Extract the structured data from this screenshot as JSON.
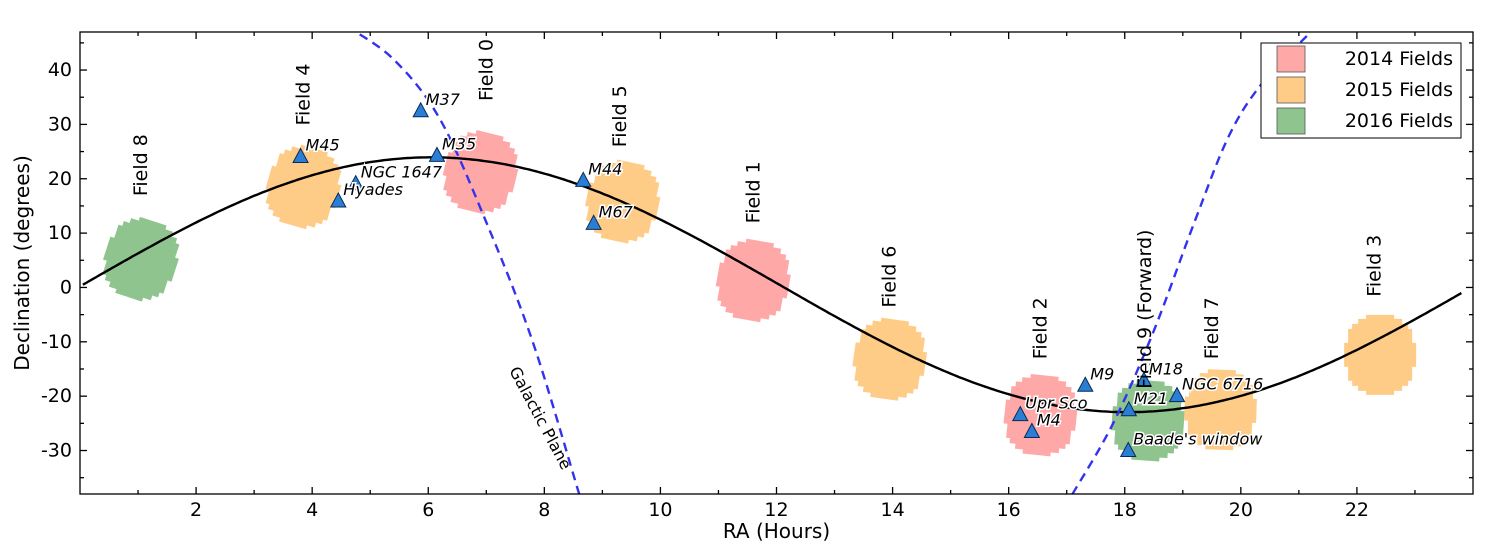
{
  "chart_data": {
    "type": "scatter",
    "xlabel": "RA (Hours)",
    "ylabel": "Declination (degrees)",
    "xlim": [
      0,
      24
    ],
    "ylim": [
      -38,
      47
    ],
    "x_ticks": [
      2,
      4,
      6,
      8,
      10,
      12,
      14,
      16,
      18,
      20,
      22
    ],
    "x_tick_labels": [
      "2",
      "4",
      "6",
      "8",
      "10",
      "12",
      "14",
      "16",
      "18",
      "20",
      "22"
    ],
    "y_ticks": [
      -30,
      -20,
      -10,
      0,
      10,
      20,
      30,
      40
    ],
    "y_tick_labels": [
      "-30",
      "-20",
      "-10",
      "0",
      "10",
      "20",
      "30",
      "40"
    ],
    "grid": false,
    "legend_position": "top-right",
    "legend": [
      {
        "label": "2014 Fields",
        "color": "#ffa8a8"
      },
      {
        "label": "2015 Fields",
        "color": "#ffcc88"
      },
      {
        "label": "2016 Fields",
        "color": "#8fc48f"
      }
    ],
    "ecliptic_color": "#000000",
    "galactic_plane_label": "Galactic Plane",
    "galactic_plane_color": "#3333ee",
    "cluster_marker_color": "#2a7fd4",
    "fields": [
      {
        "name": "Field 8",
        "ra": 1.05,
        "dec": 5.2,
        "year": "2016",
        "label_ra": 1.05,
        "label_dec": 22.5
      },
      {
        "name": "Field 4",
        "ra": 3.85,
        "dec": 18.5,
        "year": "2015",
        "label_ra": 3.85,
        "label_dec": 35.5
      },
      {
        "name": "Field 0",
        "ra": 6.9,
        "dec": 21.2,
        "year": "2014",
        "label_ra": 7.0,
        "label_dec": 40.0
      },
      {
        "name": "Field 5",
        "ra": 9.35,
        "dec": 15.8,
        "year": "2015",
        "label_ra": 9.3,
        "label_dec": 31.5
      },
      {
        "name": "Field 1",
        "ra": 11.6,
        "dec": 1.3,
        "year": "2014",
        "label_ra": 11.6,
        "label_dec": 17.5
      },
      {
        "name": "Field 6",
        "ra": 13.95,
        "dec": -13.2,
        "year": "2015",
        "label_ra": 13.95,
        "label_dec": 2.0
      },
      {
        "name": "Field 2",
        "ra": 16.55,
        "dec": -23.5,
        "year": "2014",
        "label_ra": 16.55,
        "label_dec": -7.5
      },
      {
        "name": "Field 9 (Forward)",
        "ra": 18.4,
        "dec": -24.5,
        "year": "2016",
        "label_ra": 18.35,
        "label_dec": -4.0
      },
      {
        "name": "Field 7",
        "ra": 19.65,
        "dec": -22.5,
        "year": "2015",
        "label_ra": 19.5,
        "label_dec": -7.5
      },
      {
        "name": "Field 3",
        "ra": 22.4,
        "dec": -12.4,
        "year": "2015",
        "label_ra": 22.3,
        "label_dec": 4.0
      }
    ],
    "clusters": [
      {
        "name": "M45",
        "ra": 3.8,
        "dec": 24.1
      },
      {
        "name": "NGC 1647",
        "ra": 4.75,
        "dec": 19.1
      },
      {
        "name": "Hyades",
        "ra": 4.45,
        "dec": 15.9
      },
      {
        "name": "M37",
        "ra": 5.87,
        "dec": 32.5
      },
      {
        "name": "M35",
        "ra": 6.15,
        "dec": 24.3
      },
      {
        "name": "M44",
        "ra": 8.67,
        "dec": 19.7
      },
      {
        "name": "M67",
        "ra": 8.85,
        "dec": 11.8
      },
      {
        "name": "M9",
        "ra": 17.32,
        "dec": -18.0
      },
      {
        "name": "M18",
        "ra": 18.33,
        "dec": -17.1
      },
      {
        "name": "NGC 6716",
        "ra": 18.9,
        "dec": -19.9
      },
      {
        "name": "M21",
        "ra": 18.07,
        "dec": -22.5
      },
      {
        "name": "Upr Sco",
        "ra": 16.2,
        "dec": -23.4
      },
      {
        "name": "M4",
        "ra": 16.4,
        "dec": -26.5
      },
      {
        "name": "Baade's window",
        "ra": 18.06,
        "dec": -30.0
      }
    ]
  }
}
